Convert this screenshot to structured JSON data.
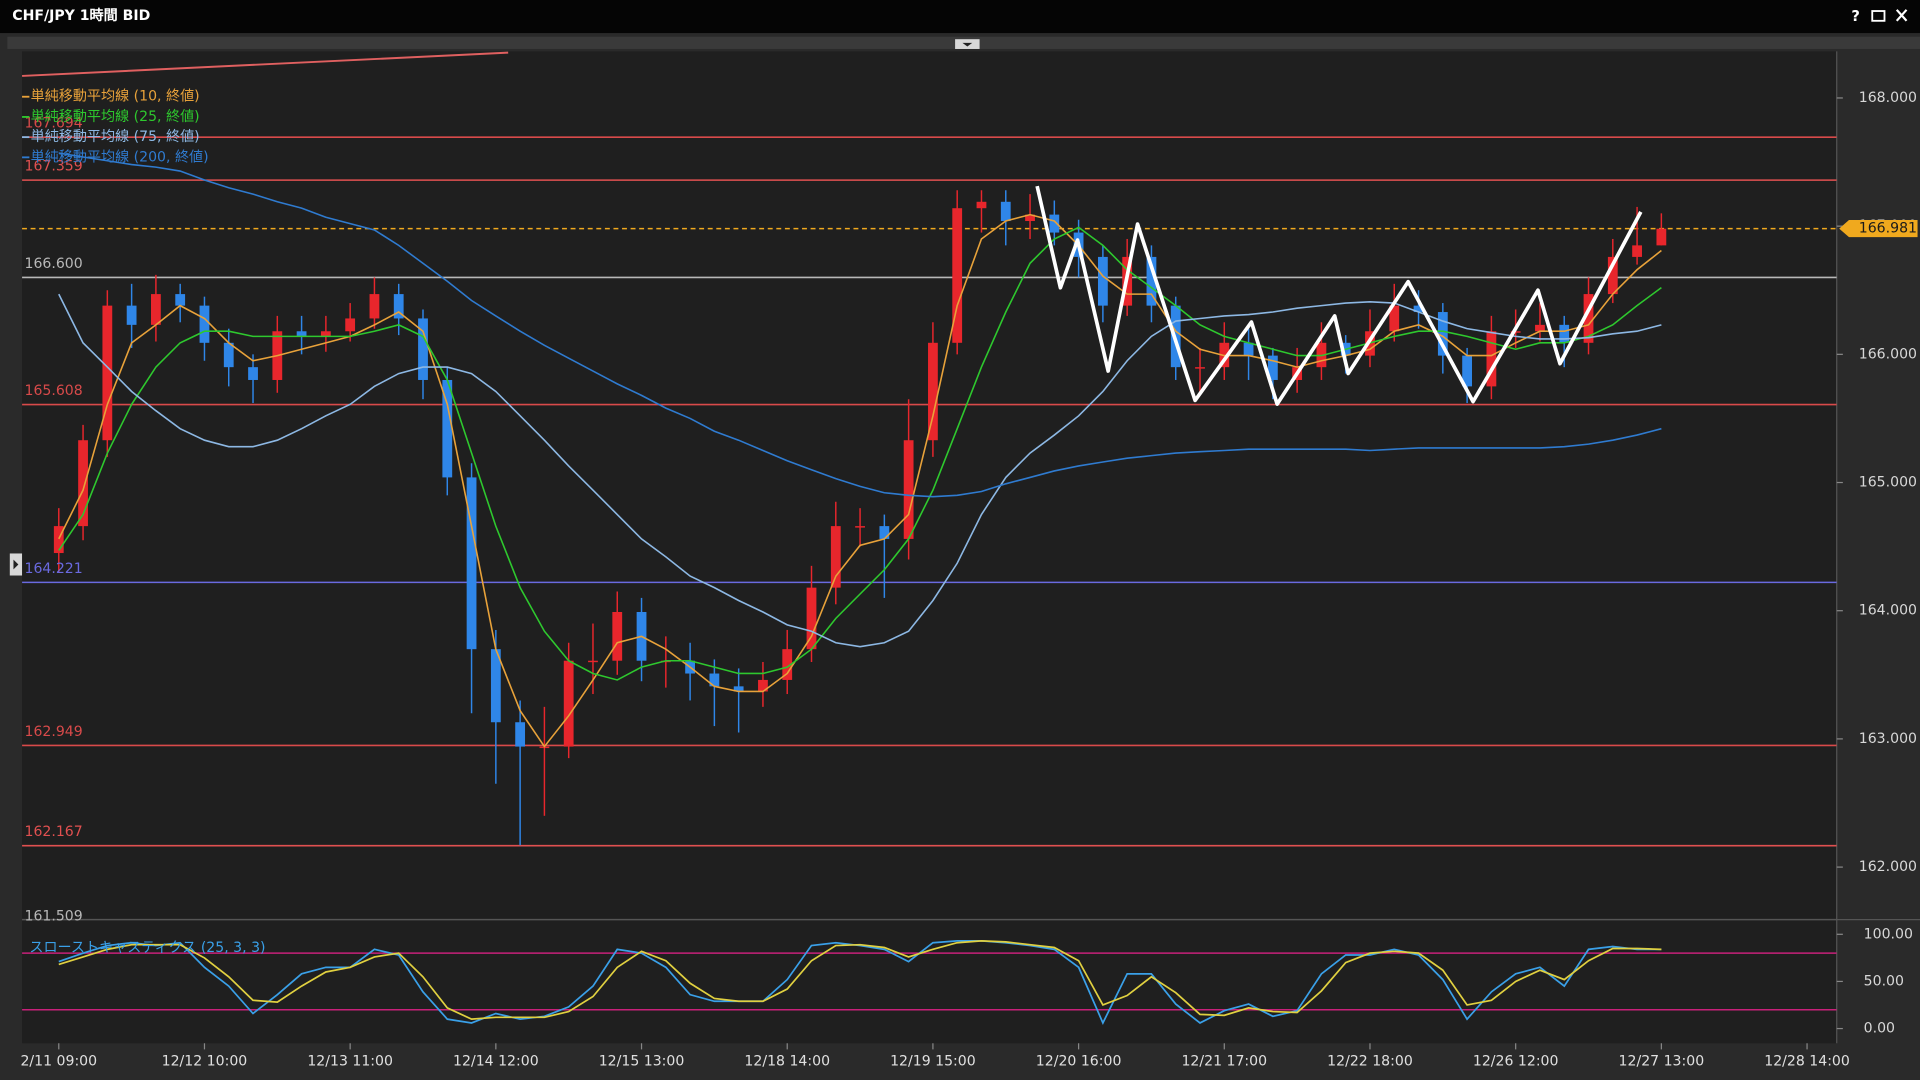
{
  "window": {
    "title": "CHF/JPY 1時間 BID"
  },
  "chart_data": [
    {
      "type": "candlestick",
      "categories": [
        "2/11 09:00",
        null,
        null,
        null,
        null,
        null,
        "12/12 10:00",
        null,
        null,
        null,
        null,
        null,
        "12/13 11:00",
        null,
        null,
        null,
        null,
        null,
        "12/14 12:00",
        null,
        null,
        null,
        null,
        null,
        "12/15 13:00",
        null,
        null,
        null,
        null,
        null,
        "12/18 14:00",
        null,
        null,
        null,
        null,
        null,
        "12/19 15:00",
        null,
        null,
        null,
        null,
        null,
        "12/20 16:00",
        null,
        null,
        null,
        null,
        null,
        "12/21 17:00",
        null,
        null,
        null,
        null,
        null,
        "12/22 18:00",
        null,
        null,
        null,
        null,
        null,
        "12/26 12:00",
        null,
        null,
        null,
        null,
        null,
        "12/27 13:00",
        null,
        null,
        null,
        null,
        null,
        "12/28 14:00"
      ],
      "open": [
        164.45,
        164.66,
        165.33,
        166.38,
        166.23,
        166.47,
        166.38,
        166.09,
        165.9,
        165.8,
        166.18,
        166.14,
        166.18,
        166.28,
        166.47,
        166.28,
        165.8,
        165.04,
        163.7,
        163.13,
        162.94,
        162.94,
        163.61,
        163.61,
        163.99,
        163.61,
        163.61,
        163.51,
        163.41,
        163.37,
        163.46,
        163.7,
        164.18,
        164.66,
        164.66,
        164.56,
        165.33,
        166.09,
        167.14,
        167.19,
        167.04,
        167.09,
        166.95,
        166.76,
        166.38,
        166.76,
        166.38,
        165.9,
        165.9,
        166.09,
        165.99,
        165.8,
        165.9,
        166.09,
        165.99,
        166.18,
        166.38,
        166.33,
        165.99,
        165.75,
        166.18,
        166.18,
        166.23,
        166.09,
        166.47,
        166.76,
        166.85,
        null,
        null,
        null,
        null,
        null,
        null
      ],
      "high": [
        164.8,
        165.45,
        166.5,
        166.55,
        166.62,
        166.55,
        166.45,
        166.2,
        166.0,
        166.3,
        166.3,
        166.3,
        166.4,
        166.6,
        166.55,
        166.35,
        165.9,
        165.15,
        163.85,
        163.3,
        163.25,
        163.75,
        163.9,
        164.15,
        164.1,
        163.8,
        163.75,
        163.62,
        163.55,
        163.6,
        163.85,
        164.35,
        164.85,
        164.8,
        164.75,
        165.65,
        166.25,
        167.28,
        167.28,
        167.28,
        167.25,
        167.2,
        167.05,
        166.85,
        166.9,
        166.85,
        166.45,
        166.05,
        166.25,
        166.2,
        166.05,
        166.05,
        166.25,
        166.15,
        166.35,
        166.55,
        166.5,
        166.4,
        166.05,
        166.3,
        166.35,
        166.4,
        166.3,
        166.6,
        166.9,
        167.15,
        167.1,
        null,
        null,
        null,
        null,
        null,
        null
      ],
      "low": [
        164.3,
        164.55,
        165.2,
        166.05,
        166.1,
        166.25,
        165.95,
        165.75,
        165.62,
        165.7,
        166.0,
        166.02,
        166.1,
        166.2,
        166.15,
        165.65,
        164.9,
        163.2,
        162.65,
        162.17,
        162.4,
        162.85,
        163.35,
        163.5,
        163.45,
        163.4,
        163.3,
        163.1,
        163.05,
        163.25,
        163.35,
        163.6,
        164.05,
        164.5,
        164.1,
        164.4,
        165.2,
        166.0,
        166.95,
        166.85,
        166.9,
        166.85,
        166.6,
        166.25,
        166.3,
        166.25,
        165.8,
        165.7,
        165.8,
        165.8,
        165.65,
        165.7,
        165.8,
        165.85,
        165.9,
        166.1,
        166.2,
        165.85,
        165.62,
        165.65,
        166.05,
        166.1,
        165.9,
        166.0,
        166.4,
        166.7,
        166.85,
        null,
        null,
        null,
        null,
        null,
        null
      ],
      "close": [
        164.66,
        165.33,
        166.38,
        166.23,
        166.47,
        166.38,
        166.09,
        165.9,
        165.8,
        166.18,
        166.14,
        166.18,
        166.28,
        166.47,
        166.28,
        165.8,
        165.04,
        163.7,
        163.13,
        162.94,
        162.94,
        163.61,
        163.61,
        163.99,
        163.61,
        163.61,
        163.51,
        163.41,
        163.37,
        163.46,
        163.7,
        164.18,
        164.66,
        164.66,
        164.56,
        165.33,
        166.09,
        167.14,
        167.19,
        167.04,
        167.09,
        166.95,
        166.76,
        166.38,
        166.76,
        166.38,
        165.9,
        165.9,
        166.09,
        165.99,
        165.8,
        165.9,
        166.09,
        165.99,
        166.18,
        166.38,
        166.33,
        165.99,
        165.75,
        166.18,
        166.18,
        166.23,
        166.09,
        166.47,
        166.76,
        166.85,
        166.98,
        null,
        null,
        null,
        null,
        null,
        null
      ],
      "up_color": "#e8262c",
      "down_color": "#2f86e8",
      "series": [
        {
          "name": "単純移動平均線 (10, 終値)",
          "color": "#e8a23a",
          "values": [
            164.56,
            164.94,
            165.61,
            166.09,
            166.23,
            166.38,
            166.28,
            166.09,
            165.95,
            165.99,
            166.04,
            166.09,
            166.14,
            166.23,
            166.33,
            166.18,
            165.61,
            164.66,
            163.7,
            163.22,
            162.94,
            163.18,
            163.46,
            163.75,
            163.8,
            163.7,
            163.56,
            163.41,
            163.37,
            163.37,
            163.51,
            163.8,
            164.27,
            164.51,
            164.56,
            164.75,
            165.52,
            166.38,
            166.9,
            167.04,
            167.09,
            167.04,
            166.85,
            166.61,
            166.47,
            166.47,
            166.18,
            166.04,
            165.99,
            165.99,
            165.95,
            165.9,
            165.95,
            165.99,
            166.04,
            166.18,
            166.23,
            166.14,
            165.99,
            165.99,
            166.09,
            166.18,
            166.18,
            166.23,
            166.47,
            166.66,
            166.81,
            null,
            null,
            null,
            null,
            null,
            null
          ]
        },
        {
          "name": "単純移動平均線 (25, 終値)",
          "color": "#2ec82e",
          "values": [
            164.47,
            164.75,
            165.23,
            165.61,
            165.9,
            166.09,
            166.18,
            166.18,
            166.14,
            166.14,
            166.14,
            166.14,
            166.14,
            166.18,
            166.23,
            166.14,
            165.8,
            165.23,
            164.66,
            164.18,
            163.84,
            163.61,
            163.51,
            163.46,
            163.56,
            163.61,
            163.61,
            163.56,
            163.51,
            163.51,
            163.56,
            163.7,
            163.94,
            164.13,
            164.32,
            164.56,
            164.94,
            165.42,
            165.9,
            166.33,
            166.71,
            166.9,
            166.99,
            166.85,
            166.66,
            166.52,
            166.38,
            166.23,
            166.14,
            166.09,
            166.04,
            165.99,
            165.99,
            166.04,
            166.09,
            166.14,
            166.18,
            166.18,
            166.14,
            166.09,
            166.04,
            166.09,
            166.09,
            166.14,
            166.23,
            166.38,
            166.52,
            null,
            null,
            null,
            null,
            null,
            null
          ]
        },
        {
          "name": "単純移動平均線 (75, 終値)",
          "color": "#8db8e4",
          "values": [
            166.47,
            166.09,
            165.9,
            165.71,
            165.56,
            165.42,
            165.33,
            165.28,
            165.28,
            165.33,
            165.42,
            165.52,
            165.61,
            165.75,
            165.85,
            165.9,
            165.9,
            165.85,
            165.71,
            165.52,
            165.33,
            165.13,
            164.94,
            164.75,
            164.56,
            164.42,
            164.27,
            164.18,
            164.08,
            163.99,
            163.89,
            163.84,
            163.75,
            163.72,
            163.75,
            163.84,
            164.08,
            164.37,
            164.75,
            165.04,
            165.23,
            165.37,
            165.52,
            165.71,
            165.95,
            166.14,
            166.26,
            166.28,
            166.3,
            166.31,
            166.33,
            166.36,
            166.38,
            166.4,
            166.41,
            166.4,
            166.33,
            166.26,
            166.2,
            166.17,
            166.14,
            166.12,
            166.12,
            166.13,
            166.16,
            166.18,
            166.23,
            null,
            null,
            null,
            null,
            null,
            null
          ]
        },
        {
          "name": "単純移動平均線 (200, 終値)",
          "color": "#2f7bd0",
          "values": [
            167.57,
            167.54,
            167.51,
            167.48,
            167.46,
            167.43,
            167.36,
            167.3,
            167.25,
            167.19,
            167.14,
            167.07,
            167.02,
            166.97,
            166.85,
            166.71,
            166.57,
            166.42,
            166.3,
            166.18,
            166.07,
            165.97,
            165.87,
            165.77,
            165.68,
            165.58,
            165.5,
            165.4,
            165.33,
            165.25,
            165.17,
            165.1,
            165.03,
            164.97,
            164.92,
            164.9,
            164.89,
            164.9,
            164.93,
            164.99,
            165.04,
            165.09,
            165.13,
            165.16,
            165.19,
            165.21,
            165.23,
            165.24,
            165.25,
            165.26,
            165.26,
            165.26,
            165.26,
            165.26,
            165.25,
            165.26,
            165.27,
            165.27,
            165.27,
            165.27,
            165.27,
            165.27,
            165.28,
            165.3,
            165.33,
            165.37,
            165.42,
            null,
            null,
            null,
            null,
            null,
            null
          ]
        }
      ],
      "levels": [
        {
          "value": 167.694,
          "color": "#d84a4a"
        },
        {
          "value": 167.359,
          "color": "#e05050"
        },
        {
          "value": 166.6,
          "label": "166.600",
          "color": "#b8b8b8"
        },
        {
          "value": 165.608,
          "color": "#d84a4a"
        },
        {
          "value": 164.221,
          "color": "#6a6ae0"
        },
        {
          "value": 162.949,
          "color": "#d84a4a"
        },
        {
          "value": 162.167,
          "color": "#e05050"
        },
        {
          "value": 161.509,
          "color": "#b8b8b8"
        }
      ],
      "last": {
        "value": 166.981,
        "color": "#f0a91e"
      },
      "ylim": [
        161.6,
        168.363
      ],
      "yticks": [
        {
          "value": 162,
          "label": "162.000"
        },
        {
          "value": 163,
          "label": "163.000"
        },
        {
          "value": 164,
          "label": "164.000"
        },
        {
          "value": 165,
          "label": "165.000"
        },
        {
          "value": 166,
          "label": "166.000"
        },
        {
          "value": 167,
          "label": "167.000"
        },
        {
          "value": 168,
          "label": "168.000"
        }
      ]
    },
    {
      "type": "line",
      "title": "スローストキャスティクス (25, 3, 3)",
      "series": [
        {
          "color": "#3aa0e8",
          "values": [
            71,
            80,
            88,
            91,
            88,
            91,
            65,
            45,
            16,
            36,
            58,
            65,
            65,
            84,
            78,
            39,
            10,
            6,
            16,
            10,
            13,
            23,
            45,
            84,
            80,
            65,
            36,
            29,
            29,
            29,
            52,
            88,
            91,
            88,
            84,
            71,
            91,
            93,
            93,
            91,
            88,
            84,
            65,
            6,
            58,
            58,
            26,
            6,
            19,
            26,
            13,
            19,
            58,
            78,
            78,
            84,
            78,
            52,
            10,
            39,
            58,
            65,
            45,
            84,
            87,
            84,
            84,
            null,
            null,
            null,
            null,
            null,
            null
          ]
        },
        {
          "color": "#e0d040",
          "values": [
            68,
            76,
            84,
            89,
            89,
            89,
            75,
            55,
            30,
            28,
            45,
            60,
            65,
            76,
            80,
            55,
            22,
            10,
            12,
            12,
            12,
            18,
            34,
            65,
            82,
            72,
            48,
            32,
            29,
            29,
            42,
            72,
            88,
            89,
            86,
            76,
            84,
            91,
            93,
            92,
            89,
            86,
            72,
            25,
            35,
            55,
            38,
            15,
            14,
            22,
            18,
            17,
            40,
            70,
            80,
            82,
            80,
            62,
            25,
            30,
            50,
            62,
            52,
            72,
            85,
            85,
            84,
            null,
            null,
            null,
            null,
            null,
            null
          ]
        }
      ],
      "levels": [
        80,
        20
      ],
      "level_color": "#c8207a",
      "ylim": [
        -15.6,
        114.3
      ],
      "yticks": [
        {
          "value": 0,
          "label": "0.00"
        },
        {
          "value": 50,
          "label": "50.00"
        },
        {
          "value": 100,
          "label": "100.00"
        }
      ]
    }
  ]
}
